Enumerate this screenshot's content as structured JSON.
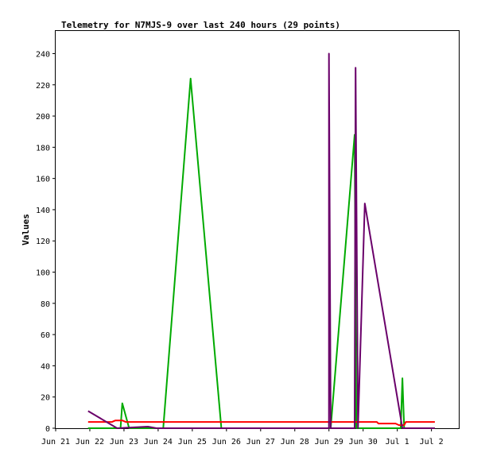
{
  "chart_data": {
    "type": "line",
    "title": "Telemetry for N7MJS-9 over last 240 hours (29 points)",
    "ylabel": "Values",
    "xlabel": "",
    "ylim": [
      0,
      255
    ],
    "xlim": [
      0,
      11.8
    ],
    "x_ticks": [
      {
        "label": "Jun 21",
        "x": 0
      },
      {
        "label": "Jun 22",
        "x": 1
      },
      {
        "label": "Jun 23",
        "x": 2
      },
      {
        "label": "Jun 24",
        "x": 3
      },
      {
        "label": "Jun 25",
        "x": 4
      },
      {
        "label": "Jun 26",
        "x": 5
      },
      {
        "label": "Jun 27",
        "x": 6
      },
      {
        "label": "Jun 28",
        "x": 7
      },
      {
        "label": "Jun 29",
        "x": 8
      },
      {
        "label": "Jun 30",
        "x": 9
      },
      {
        "label": "Jul 1",
        "x": 10
      },
      {
        "label": "Jul 2",
        "x": 11
      }
    ],
    "y_ticks": [
      0,
      20,
      40,
      60,
      80,
      100,
      120,
      140,
      160,
      180,
      200,
      220,
      240
    ],
    "grid": false,
    "legend": "none",
    "series": [
      {
        "color": "#000000",
        "points": [
          [
            0.95,
            0
          ],
          [
            11.1,
            0
          ]
        ]
      },
      {
        "color": "#00aa00",
        "points": [
          [
            0.95,
            0
          ],
          [
            1.9,
            0
          ],
          [
            1.95,
            16
          ],
          [
            2.15,
            0
          ],
          [
            3.15,
            0
          ],
          [
            3.95,
            224
          ],
          [
            4.85,
            0
          ],
          [
            8.05,
            0
          ],
          [
            8.75,
            188
          ],
          [
            8.8,
            0
          ],
          [
            10.1,
            0
          ],
          [
            10.15,
            32
          ],
          [
            10.2,
            0
          ],
          [
            11.1,
            0
          ]
        ]
      },
      {
        "color": "#ff0000",
        "points": [
          [
            0.95,
            4
          ],
          [
            1.65,
            4
          ],
          [
            1.75,
            5
          ],
          [
            1.95,
            5
          ],
          [
            2.05,
            4
          ],
          [
            9.4,
            4
          ],
          [
            9.45,
            3
          ],
          [
            9.95,
            3
          ],
          [
            10.05,
            2
          ],
          [
            10.2,
            2
          ],
          [
            10.25,
            4
          ],
          [
            11.1,
            4
          ]
        ]
      },
      {
        "color": "#6a006a",
        "points": [
          [
            0.95,
            11
          ],
          [
            1.8,
            0
          ],
          [
            2.7,
            1
          ],
          [
            2.95,
            0
          ],
          [
            8.0,
            0
          ],
          [
            8.0,
            240
          ],
          [
            8.05,
            0
          ],
          [
            8.75,
            0
          ],
          [
            8.78,
            231
          ],
          [
            8.85,
            0
          ],
          [
            9.05,
            144
          ],
          [
            10.15,
            0
          ],
          [
            11.1,
            0
          ]
        ]
      }
    ]
  }
}
